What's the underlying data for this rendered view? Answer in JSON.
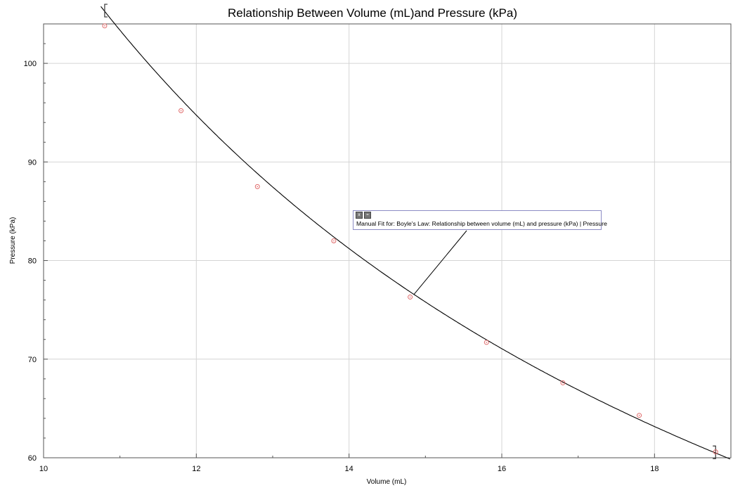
{
  "chart_data": {
    "type": "scatter",
    "title": "Relationship Between Volume (mL)and Pressure (kPa)",
    "xlabel": "Volume  (mL)",
    "ylabel": "Pressure (kPa)",
    "xlim": [
      10,
      19
    ],
    "ylim": [
      60,
      104
    ],
    "x_ticks": [
      10,
      12,
      14,
      16,
      18
    ],
    "y_ticks": [
      60,
      70,
      80,
      90,
      100
    ],
    "grid": true,
    "series": [
      {
        "kind": "points",
        "marker": "circle",
        "color": "#e06a6a",
        "x": [
          10.8,
          11.8,
          12.8,
          13.8,
          14.8,
          15.8,
          16.8,
          17.8,
          18.8
        ],
        "y": [
          103.8,
          95.2,
          87.5,
          82.0,
          76.3,
          71.7,
          67.6,
          64.3,
          60.6
        ]
      },
      {
        "kind": "fit_curve",
        "color": "#000000",
        "equation": "P = 1137 / V",
        "fit_range": [
          10.8,
          18.8
        ]
      }
    ],
    "annotation": "Manual Fit for: Boyle's Law: Relationship between volume (mL) and pressure (kPa) | Pressure"
  },
  "annotation_buttons": [
    "x",
    "="
  ]
}
